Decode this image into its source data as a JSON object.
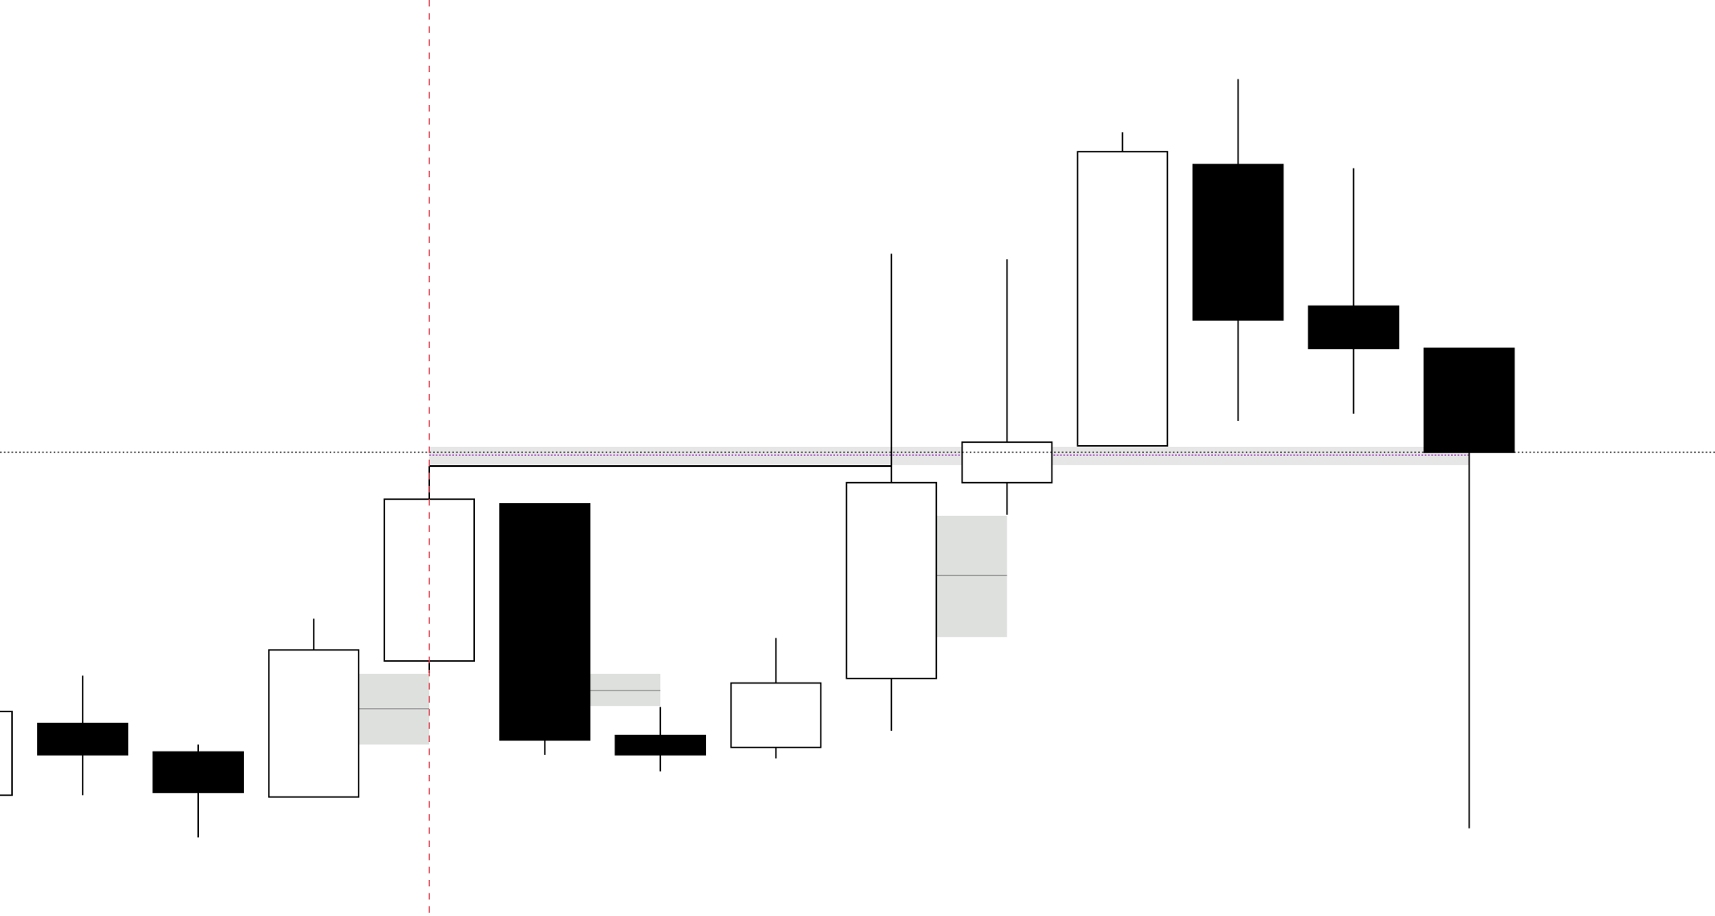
{
  "chart_data": {
    "type": "candlestick",
    "title": "",
    "xlabel": "",
    "ylabel": "",
    "ylim": [
      0,
      100
    ],
    "grid": false,
    "colors": {
      "up_fill": "#ffffff",
      "down_fill": "#000000",
      "outline": "#000000",
      "zone_fill": "#dde0dd",
      "zone_mid": "#999999",
      "band_fill": "#e6e6e6",
      "level_line": "#000000",
      "purple_line": "#9b30c0",
      "vertical_marker": "#e04050"
    },
    "candles": [
      {
        "open": 13.5,
        "high": 22.6,
        "low": 13.5,
        "close": 22.6
      },
      {
        "open": 21.3,
        "high": 26.5,
        "low": 13.5,
        "close": 17.9
      },
      {
        "open": 18.2,
        "high": 19.0,
        "low": 8.9,
        "close": 13.8
      },
      {
        "open": 13.3,
        "high": 32.7,
        "low": 13.3,
        "close": 29.3
      },
      {
        "open": 28.1,
        "high": 49.3,
        "low": 26.8,
        "close": 45.7
      },
      {
        "open": 45.2,
        "high": 45.2,
        "low": 17.9,
        "close": 19.5
      },
      {
        "open": 20.0,
        "high": 23.1,
        "low": 16.1,
        "close": 17.9
      },
      {
        "open": 18.7,
        "high": 30.6,
        "low": 17.5,
        "close": 25.7
      },
      {
        "open": 26.2,
        "high": 72.4,
        "low": 20.5,
        "close": 47.5
      },
      {
        "open": 47.5,
        "high": 71.8,
        "low": 44.0,
        "close": 51.9
      },
      {
        "open": 51.5,
        "high": 85.6,
        "low": 51.5,
        "close": 83.5
      },
      {
        "open": 82.1,
        "high": 91.4,
        "low": 54.2,
        "close": 65.2
      },
      {
        "open": 66.7,
        "high": 81.7,
        "low": 55.0,
        "close": 62.1
      },
      {
        "open": 62.1,
        "high": 62.1,
        "low": 9.9,
        "close": 50.8
      }
    ],
    "zones": [
      {
        "from_candle": 3,
        "to_candle": 4,
        "top": 26.7,
        "bottom": 19.0,
        "mid": 22.9
      },
      {
        "from_candle": 5,
        "to_candle": 6,
        "top": 26.7,
        "bottom": 23.2,
        "mid": 24.9
      },
      {
        "from_candle": 8,
        "to_candle": 9,
        "top": 43.9,
        "bottom": 30.7,
        "mid": 37.4
      }
    ],
    "band": {
      "from_candle": 4,
      "to_candle": 13,
      "top": 51.4,
      "bottom": 49.4,
      "purple_level": 50.5
    },
    "horizontal_level": 50.8,
    "high_connector": {
      "from_candle": 4,
      "to_candle": 8,
      "level": 49.3
    },
    "vertical_marker_candle": 4
  }
}
